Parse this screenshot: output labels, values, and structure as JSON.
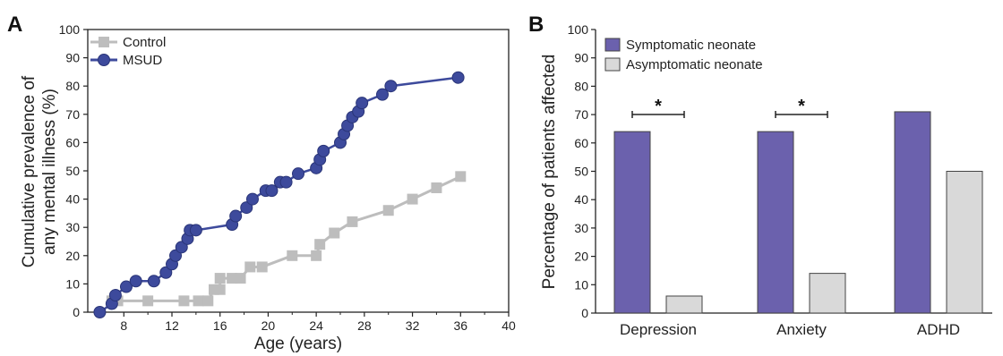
{
  "panel_a_letter": "A",
  "panel_b_letter": "B",
  "colors": {
    "msud": "#3d4a9c",
    "control": "#bdbdbd",
    "symptomatic": "#6b61ad",
    "asymptomatic": "#d9d9d9"
  },
  "chart_data": [
    {
      "type": "line",
      "xlabel": "Age (years)",
      "ylabel_lines": [
        "Cumulative prevalence of",
        "any mental illness (%)"
      ],
      "xlim": [
        5,
        40
      ],
      "ylim": [
        0,
        100
      ],
      "xticks": [
        8,
        12,
        16,
        20,
        24,
        28,
        32,
        36,
        40
      ],
      "yticks": [
        0,
        10,
        20,
        30,
        40,
        50,
        60,
        70,
        80,
        90,
        100
      ],
      "legend_position": "top-left",
      "series": [
        {
          "name": "Control",
          "marker": "square",
          "points": [
            [
              7,
              4
            ],
            [
              7.5,
              4
            ],
            [
              10,
              4
            ],
            [
              13,
              4
            ],
            [
              14.2,
              4
            ],
            [
              15,
              4
            ],
            [
              15.5,
              8
            ],
            [
              16,
              8
            ],
            [
              16,
              12
            ],
            [
              17,
              12
            ],
            [
              17.7,
              12
            ],
            [
              18.5,
              16
            ],
            [
              19.5,
              16
            ],
            [
              22,
              20
            ],
            [
              24,
              20
            ],
            [
              24.3,
              24
            ],
            [
              25.5,
              28
            ],
            [
              27,
              32
            ],
            [
              30,
              36
            ],
            [
              32,
              40
            ],
            [
              34,
              44
            ],
            [
              36,
              48
            ]
          ]
        },
        {
          "name": "MSUD",
          "marker": "circle",
          "points": [
            [
              6,
              0
            ],
            [
              7,
              3
            ],
            [
              7.3,
              6
            ],
            [
              8.2,
              9
            ],
            [
              9,
              11
            ],
            [
              10.5,
              11
            ],
            [
              11.5,
              14
            ],
            [
              12,
              17
            ],
            [
              12.3,
              20
            ],
            [
              12.8,
              23
            ],
            [
              13.3,
              26
            ],
            [
              13.5,
              29
            ],
            [
              14,
              29
            ],
            [
              17,
              31
            ],
            [
              17.3,
              34
            ],
            [
              18.2,
              37
            ],
            [
              18.7,
              40
            ],
            [
              19.8,
              43
            ],
            [
              20.3,
              43
            ],
            [
              21,
              46
            ],
            [
              21.5,
              46
            ],
            [
              22.5,
              49
            ],
            [
              24,
              51
            ],
            [
              24.3,
              54
            ],
            [
              24.6,
              57
            ],
            [
              26,
              60
            ],
            [
              26.3,
              63
            ],
            [
              26.6,
              66
            ],
            [
              27,
              69
            ],
            [
              27.5,
              71
            ],
            [
              27.8,
              74
            ],
            [
              29.5,
              77
            ],
            [
              30.2,
              80
            ],
            [
              35.8,
              83
            ]
          ]
        }
      ]
    },
    {
      "type": "bar",
      "ylabel": "Percentage of patients affected",
      "ylim": [
        0,
        100
      ],
      "yticks": [
        0,
        10,
        20,
        30,
        40,
        50,
        60,
        70,
        80,
        90,
        100
      ],
      "categories": [
        "Depression",
        "Anxiety",
        "ADHD"
      ],
      "legend_position": "top-left",
      "series": [
        {
          "name": "Symptomatic neonate",
          "values": [
            64,
            64,
            71
          ]
        },
        {
          "name": "Asymptomatic neonate",
          "values": [
            6,
            14,
            50
          ]
        }
      ],
      "significance": [
        {
          "category": "Depression",
          "mark": "*"
        },
        {
          "category": "Anxiety",
          "mark": "*"
        }
      ]
    }
  ]
}
